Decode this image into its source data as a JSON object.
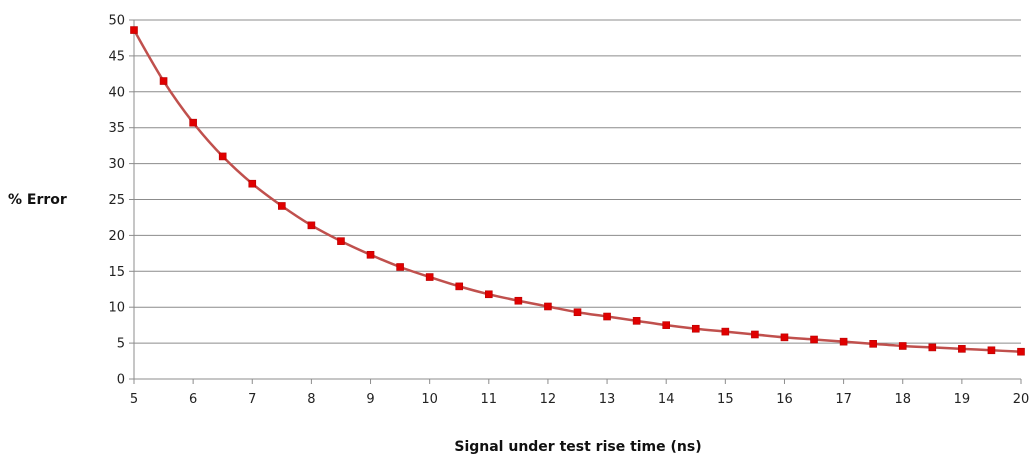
{
  "chart_data": {
    "type": "line",
    "title": "",
    "xlabel": "Signal under test rise time (ns)",
    "ylabel": "% Error",
    "xlim": [
      5,
      20
    ],
    "ylim": [
      0,
      50
    ],
    "x_ticks": [
      "5",
      "6",
      "7",
      "8",
      "9",
      "10",
      "11",
      "12",
      "13",
      "14",
      "15",
      "16",
      "17",
      "18",
      "19",
      "20"
    ],
    "y_ticks": [
      "0",
      "5",
      "10",
      "15",
      "20",
      "25",
      "30",
      "35",
      "40",
      "45",
      "50"
    ],
    "grid": "horizontal",
    "legend": "none",
    "series": [
      {
        "line_color": "#C0504D",
        "marker_color": "#E00000",
        "marker": "square",
        "x": [
          5,
          5.5,
          6,
          6.5,
          7,
          7.5,
          8,
          8.5,
          9,
          9.5,
          10,
          10.5,
          11,
          11.5,
          12,
          12.5,
          13,
          13.5,
          14,
          14.5,
          15,
          15.5,
          16,
          16.5,
          17,
          17.5,
          18,
          18.5,
          19,
          19.5,
          20
        ],
        "values": [
          48.6,
          41.5,
          35.7,
          31.0,
          27.2,
          24.1,
          21.4,
          19.2,
          17.3,
          15.6,
          14.2,
          12.9,
          11.8,
          10.9,
          10.1,
          9.3,
          8.7,
          8.1,
          7.5,
          7.0,
          6.6,
          6.2,
          5.8,
          5.5,
          5.2,
          4.9,
          4.6,
          4.4,
          4.2,
          4.0,
          3.8
        ]
      }
    ]
  }
}
